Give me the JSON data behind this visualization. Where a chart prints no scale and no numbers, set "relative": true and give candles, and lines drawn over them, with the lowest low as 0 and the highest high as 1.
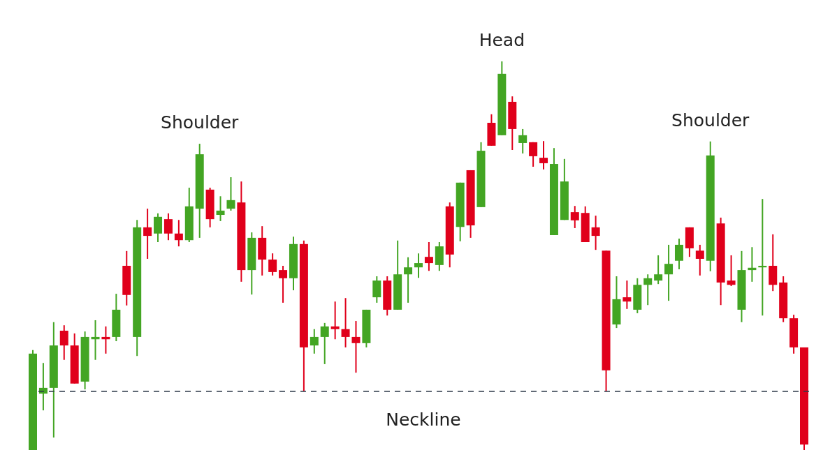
{
  "chart_data": {
    "type": "candlestick",
    "relative": true,
    "categories": [
      null,
      null,
      null,
      null,
      null,
      null,
      null,
      null,
      null,
      null,
      null,
      null,
      null,
      null,
      null,
      null,
      null,
      null,
      null,
      null,
      null,
      null,
      null,
      null,
      null,
      null,
      null,
      null,
      null,
      null,
      null,
      null,
      null,
      null,
      null,
      null,
      null,
      null,
      null,
      null,
      null,
      null,
      null,
      null,
      null,
      null,
      null,
      null,
      null,
      null,
      null,
      null,
      null,
      null,
      null,
      null,
      null,
      null,
      null,
      null,
      null,
      null,
      null,
      null,
      null,
      null,
      null,
      null,
      null,
      null,
      null,
      null,
      null,
      null,
      null
    ],
    "ohlc": [
      [
        0,
        0.257,
        0,
        0.248
      ],
      [
        0.145,
        0.224,
        0.102,
        0.16
      ],
      [
        0.16,
        0.329,
        0.032,
        0.269
      ],
      [
        0.307,
        0.321,
        0.232,
        0.269
      ],
      [
        0.269,
        0.3,
        0.171,
        0.171
      ],
      [
        0.176,
        0.305,
        0.156,
        0.291
      ],
      [
        0.285,
        0.334,
        0.232,
        0.291
      ],
      [
        0.291,
        0.318,
        0.248,
        0.285
      ],
      [
        0.291,
        0.402,
        0.28,
        0.361
      ],
      [
        0.474,
        0.512,
        0.372,
        0.399
      ],
      [
        0.291,
        0.592,
        0.242,
        0.573
      ],
      [
        0.573,
        0.621,
        0.492,
        0.551
      ],
      [
        0.557,
        0.609,
        0.535,
        0.6
      ],
      [
        0.594,
        0.609,
        0.54,
        0.557
      ],
      [
        0.557,
        0.592,
        0.524,
        0.54
      ],
      [
        0.54,
        0.675,
        0.535,
        0.627
      ],
      [
        0.621,
        0.788,
        0.546,
        0.761
      ],
      [
        0.67,
        0.675,
        0.573,
        0.594
      ],
      [
        0.605,
        0.653,
        0.589,
        0.616
      ],
      [
        0.621,
        0.702,
        0.616,
        0.643
      ],
      [
        0.637,
        0.691,
        0.433,
        0.463
      ],
      [
        0.463,
        0.56,
        0.4,
        0.546
      ],
      [
        0.546,
        0.576,
        0.449,
        0.49
      ],
      [
        0.49,
        0.506,
        0.449,
        0.458
      ],
      [
        0.463,
        0.474,
        0.379,
        0.442
      ],
      [
        0.442,
        0.549,
        0.411,
        0.53
      ],
      [
        0.53,
        0.539,
        0.151,
        0.264
      ],
      [
        0.269,
        0.311,
        0.248,
        0.291
      ],
      [
        0.291,
        0.327,
        0.221,
        0.318
      ],
      [
        0.318,
        0.382,
        0.285,
        0.311
      ],
      [
        0.311,
        0.391,
        0.264,
        0.291
      ],
      [
        0.291,
        0.332,
        0.199,
        0.275
      ],
      [
        0.275,
        0.361,
        0.264,
        0.361
      ],
      [
        0.393,
        0.447,
        0.379,
        0.436
      ],
      [
        0.436,
        0.447,
        0.346,
        0.361
      ],
      [
        0.361,
        0.539,
        0.361,
        0.452
      ],
      [
        0.452,
        0.496,
        0.379,
        0.47
      ],
      [
        0.47,
        0.506,
        0.443,
        0.481
      ],
      [
        0.497,
        0.535,
        0.461,
        0.481
      ],
      [
        0.476,
        0.535,
        0.461,
        0.524
      ],
      [
        0.627,
        0.637,
        0.47,
        0.503
      ],
      [
        0.574,
        0.688,
        0.537,
        0.688
      ],
      [
        0.72,
        0.72,
        0.546,
        0.578
      ],
      [
        0.625,
        0.792,
        0.625,
        0.77
      ],
      [
        0.842,
        0.864,
        0.783,
        0.783
      ],
      [
        0.81,
        1,
        0.81,
        0.968
      ],
      [
        0.896,
        0.91,
        0.772,
        0.826
      ],
      [
        0.79,
        0.826,
        0.763,
        0.81
      ],
      [
        0.792,
        0.792,
        0.729,
        0.756
      ],
      [
        0.752,
        0.795,
        0.722,
        0.738
      ],
      [
        0.553,
        0.777,
        0.553,
        0.736
      ],
      [
        0.592,
        0.749,
        0.592,
        0.691
      ],
      [
        0.612,
        0.628,
        0.571,
        0.591
      ],
      [
        0.61,
        0.627,
        0.535,
        0.535
      ],
      [
        0.573,
        0.603,
        0.515,
        0.551
      ],
      [
        0.513,
        0.513,
        0.151,
        0.205
      ],
      [
        0.323,
        0.447,
        0.314,
        0.388
      ],
      [
        0.393,
        0.436,
        0.363,
        0.382
      ],
      [
        0.361,
        0.442,
        0.352,
        0.425
      ],
      [
        0.425,
        0.452,
        0.373,
        0.442
      ],
      [
        0.436,
        0.501,
        0.427,
        0.452
      ],
      [
        0.452,
        0.528,
        0.384,
        0.479
      ],
      [
        0.487,
        0.544,
        0.465,
        0.528
      ],
      [
        0.573,
        0.573,
        0.497,
        0.519
      ],
      [
        0.513,
        0.528,
        0.449,
        0.492
      ],
      [
        0.487,
        0.794,
        0.46,
        0.758
      ],
      [
        0.583,
        0.598,
        0.373,
        0.431
      ],
      [
        0.436,
        0.501,
        0.422,
        0.425
      ],
      [
        0.361,
        0.512,
        0.329,
        0.463
      ],
      [
        0.463,
        0.522,
        0.433,
        0.469
      ],
      [
        0.47,
        0.646,
        0.346,
        0.474
      ],
      [
        0.474,
        0.555,
        0.409,
        0.425
      ],
      [
        0.431,
        0.447,
        0.329,
        0.339
      ],
      [
        0.339,
        0.348,
        0.248,
        0.264
      ],
      [
        0.264,
        0.264,
        0,
        0.014
      ]
    ],
    "colors": [
      "#43a523",
      "#43a523",
      "#43a523",
      "#e0001b",
      "#e0001b",
      "#43a523",
      "#43a523",
      "#e0001b",
      "#43a523",
      "#e0001b",
      "#43a523",
      "#e0001b",
      "#43a523",
      "#e0001b",
      "#e0001b",
      "#43a523",
      "#43a523",
      "#e0001b",
      "#43a523",
      "#43a523",
      "#e0001b",
      "#43a523",
      "#e0001b",
      "#e0001b",
      "#e0001b",
      "#43a523",
      "#e0001b",
      "#43a523",
      "#43a523",
      "#e0001b",
      "#e0001b",
      "#e0001b",
      "#43a523",
      "#43a523",
      "#e0001b",
      "#43a523",
      "#43a523",
      "#43a523",
      "#e0001b",
      "#43a523",
      "#e0001b",
      "#43a523",
      "#e0001b",
      "#43a523",
      "#e0001b",
      "#43a523",
      "#e0001b",
      "#43a523",
      "#e0001b",
      "#e0001b",
      "#43a523",
      "#43a523",
      "#e0001b",
      "#e0001b",
      "#e0001b",
      "#e0001b",
      "#43a523",
      "#e0001b",
      "#43a523",
      "#43a523",
      "#43a523",
      "#43a523",
      "#43a523",
      "#e0001b",
      "#e0001b",
      "#43a523",
      "#e0001b",
      "#e0001b",
      "#43a523",
      "#43a523",
      "#43a523",
      "#e0001b",
      "#e0001b",
      "#e0001b",
      "#e0001b"
    ],
    "ref_lines": [
      {
        "axis": "y",
        "value": 0.151,
        "label": "Neckline",
        "color": "#2e3a4a",
        "line_style": "dashed"
      }
    ],
    "annotations": [
      {
        "text": "Shoulder",
        "y": 0.788
      },
      {
        "text": "Head",
        "y": 1
      },
      {
        "text": "Shoulder",
        "y": 0.794
      }
    ]
  }
}
